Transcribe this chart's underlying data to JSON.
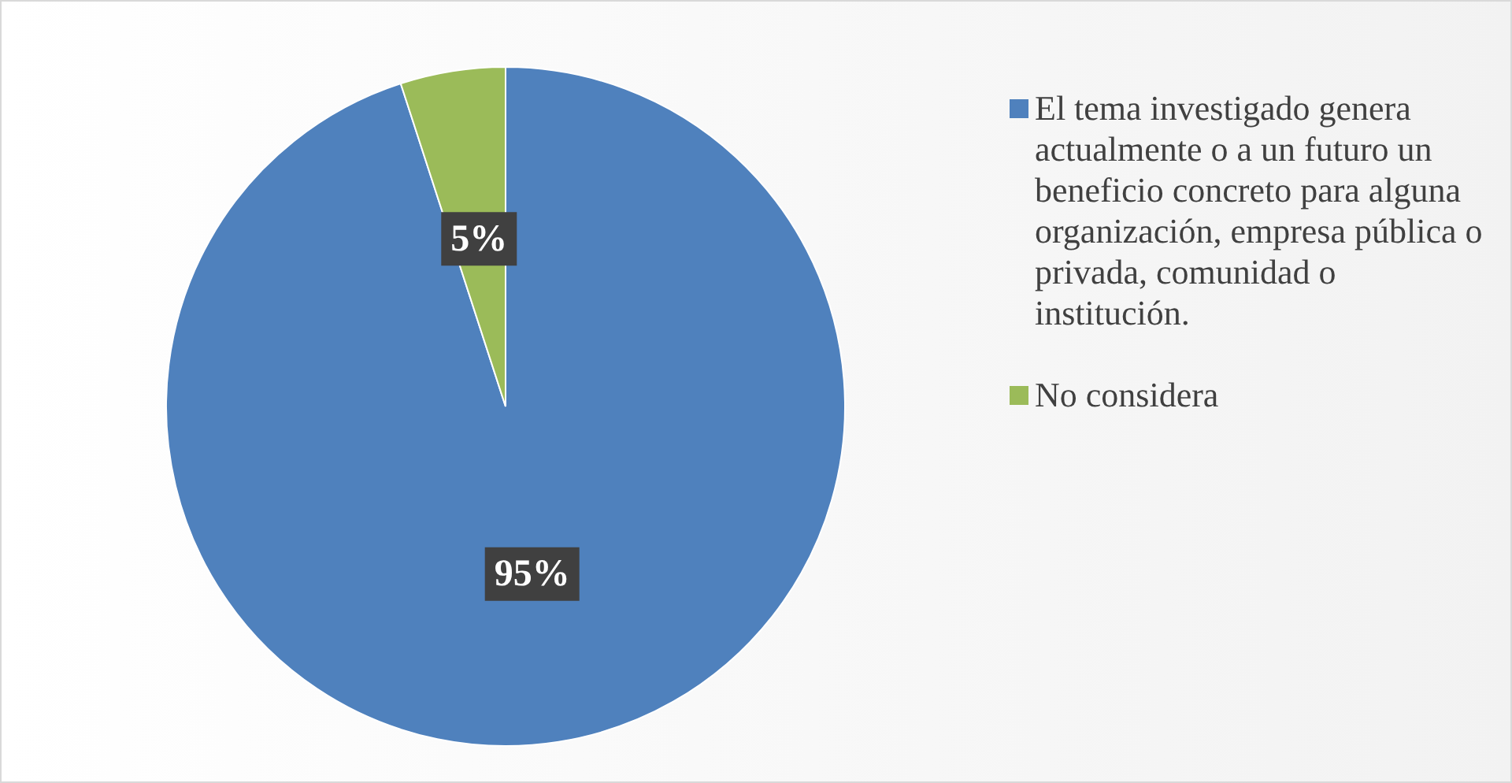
{
  "chart_data": {
    "type": "pie",
    "categories": [
      "El tema investigado genera actualmente o a un futuro un beneficio concreto para alguna organización, empresa pública o privada, comunidad o institución.",
      "No considera"
    ],
    "values": [
      95,
      5
    ],
    "colors": [
      "#4f81bd",
      "#9bbb59"
    ],
    "value_labels": [
      "95%",
      "5%"
    ],
    "legend": "right"
  }
}
